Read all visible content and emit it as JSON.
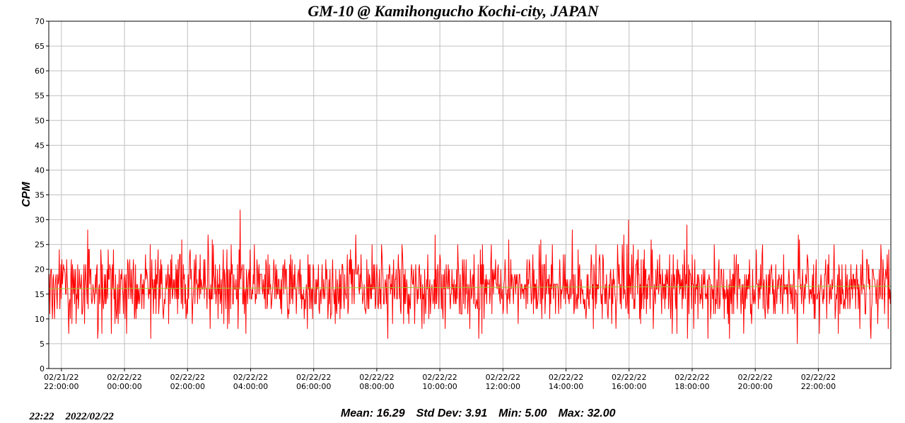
{
  "stats": {
    "mean": "Mean: 16.29",
    "std": "Std Dev: 3.91",
    "min": "Min: 5.00",
    "max": "Max: 32.00"
  },
  "footer": {
    "time": "22:22",
    "date": "2022/02/22"
  },
  "chart_data": {
    "type": "line",
    "title": "GM-10 @ Kamihongucho Kochi-city, JAPAN",
    "xlabel": "",
    "ylabel": "CPM",
    "ylim": [
      0,
      70
    ],
    "yticks": [
      0,
      5,
      10,
      15,
      20,
      25,
      30,
      35,
      40,
      45,
      50,
      55,
      60,
      65,
      70
    ],
    "xlim_hours": [
      -2.4,
      24.3
    ],
    "xticks": [
      {
        "date": "02/21/22",
        "time": "22:00:00"
      },
      {
        "date": "02/22/22",
        "time": "00:00:00"
      },
      {
        "date": "02/22/22",
        "time": "02:00:00"
      },
      {
        "date": "02/22/22",
        "time": "04:00:00"
      },
      {
        "date": "02/22/22",
        "time": "06:00:00"
      },
      {
        "date": "02/22/22",
        "time": "08:00:00"
      },
      {
        "date": "02/22/22",
        "time": "10:00:00"
      },
      {
        "date": "02/22/22",
        "time": "12:00:00"
      },
      {
        "date": "02/22/22",
        "time": "14:00:00"
      },
      {
        "date": "02/22/22",
        "time": "16:00:00"
      },
      {
        "date": "02/22/22",
        "time": "18:00:00"
      },
      {
        "date": "02/22/22",
        "time": "20:00:00"
      },
      {
        "date": "02/22/22",
        "time": "22:00:00"
      }
    ],
    "grid": true,
    "series": [
      {
        "color": "#ff0000",
        "sample_interval_minutes": 1,
        "mean": 16.29,
        "std": 3.91,
        "min": 5,
        "max": 32,
        "peaks": [
          {
            "time": "2022-02-22 03:40",
            "value": 32
          },
          {
            "time": "2022-02-22 15:59",
            "value": 30
          },
          {
            "time": "2022-02-22 17:50",
            "value": 29
          },
          {
            "time": "2022-02-22 21:20",
            "value": 5
          }
        ]
      },
      {
        "color": "#9acd32",
        "type": "trend",
        "values_start_end": [
          16.1,
          16.6
        ]
      }
    ]
  }
}
